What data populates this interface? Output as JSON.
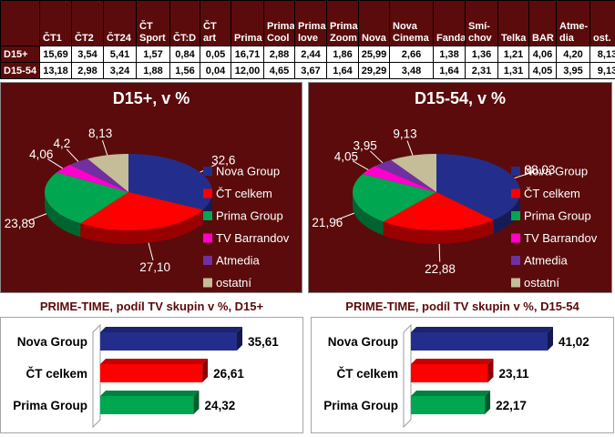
{
  "colors": {
    "panel_bg": "#5B0B0B",
    "panel_border": "#8C8C8C",
    "bar_panel_border": "#A6A6A6",
    "table_header_bg": "#5B0B0B",
    "table_header_text": "#FFFFFF",
    "table_value_text": "#000000",
    "table_grid": "#000000",
    "pie_label_text": "#FFFFFF",
    "bar_label_text": "#000000",
    "bar_title_text": "#5B0B0B",
    "wall_fill": "#FFFFFF",
    "wall_stroke": "#9E9E9E"
  },
  "chart_data": [
    {
      "type": "table",
      "columns": [
        "ČT1",
        "ČT2",
        "ČT24",
        "ČT Sport",
        "ČT:D",
        "ČT art",
        "Prima",
        "Prima Cool",
        "Prima love",
        "Prima Zoom",
        "Nova",
        "Nova Cinema",
        "Fanda",
        "Smí-chov",
        "Telka",
        "BAR",
        "Atme-dia",
        "ost."
      ],
      "rows": [
        {
          "label": "D15+",
          "values": [
            "15,69",
            "3,54",
            "5,41",
            "1,57",
            "0,84",
            "0,05",
            "16,71",
            "2,88",
            "2,44",
            "1,86",
            "25,99",
            "2,66",
            "1,38",
            "1,36",
            "1,21",
            "4,06",
            "4,20",
            "8,13"
          ]
        },
        {
          "label": "D15-54",
          "values": [
            "13,18",
            "2,98",
            "3,24",
            "1,88",
            "1,56",
            "0,04",
            "12,00",
            "4,65",
            "3,67",
            "1,64",
            "29,29",
            "3,48",
            "1,64",
            "2,31",
            "1,31",
            "4,05",
            "3,95",
            "9,13"
          ]
        }
      ]
    },
    {
      "type": "pie",
      "title": "D15+, v %",
      "labels": [
        "Nova Group",
        "ČT celkem",
        "Prima Group",
        "TV Barrandov",
        "Atmedia",
        "ostatní"
      ],
      "values": [
        32.6,
        27.1,
        23.89,
        4.06,
        4.2,
        8.13
      ],
      "value_labels": [
        "32,6",
        "27,10",
        "23,89",
        "4,06",
        "4,2",
        "8,13"
      ],
      "colors": [
        "#232E8C",
        "#FF0000",
        "#00A650",
        "#FF00CC",
        "#7030A0",
        "#C4BD97"
      ],
      "legend_position": "right",
      "effect": "3d"
    },
    {
      "type": "pie",
      "title": "D15-54, v %",
      "labels": [
        "Nova Group",
        "ČT celkem",
        "Prima Group",
        "TV Barrandov",
        "Atmedia",
        "ostatní"
      ],
      "values": [
        38.03,
        22.88,
        21.96,
        4.05,
        3.95,
        9.13
      ],
      "value_labels": [
        "38,03",
        "22,88",
        "21,96",
        "4,05",
        "3,95",
        "9,13"
      ],
      "colors": [
        "#232E8C",
        "#FF0000",
        "#00A650",
        "#FF00CC",
        "#7030A0",
        "#C4BD97"
      ],
      "legend_position": "right",
      "effect": "3d"
    },
    {
      "type": "bar",
      "orientation": "horizontal",
      "title": "PRIME-TIME, podíl TV skupin v %, D15+",
      "categories": [
        "Nova Group",
        "ČT celkem",
        "Prima Group"
      ],
      "values": [
        35.61,
        26.61,
        24.32
      ],
      "value_labels": [
        "35,61",
        "26,61",
        "24,32"
      ],
      "colors": [
        "#232E8C",
        "#FF0000",
        "#00A650"
      ],
      "effect": "3d"
    },
    {
      "type": "bar",
      "orientation": "horizontal",
      "title": "PRIME-TIME, podíl TV skupin v %, D15-54",
      "categories": [
        "Nova Group",
        "ČT celkem",
        "Prima Group"
      ],
      "values": [
        41.02,
        23.11,
        22.17
      ],
      "value_labels": [
        "41,02",
        "23,11",
        "22,17"
      ],
      "colors": [
        "#232E8C",
        "#FF0000",
        "#00A650"
      ],
      "effect": "3d"
    }
  ]
}
